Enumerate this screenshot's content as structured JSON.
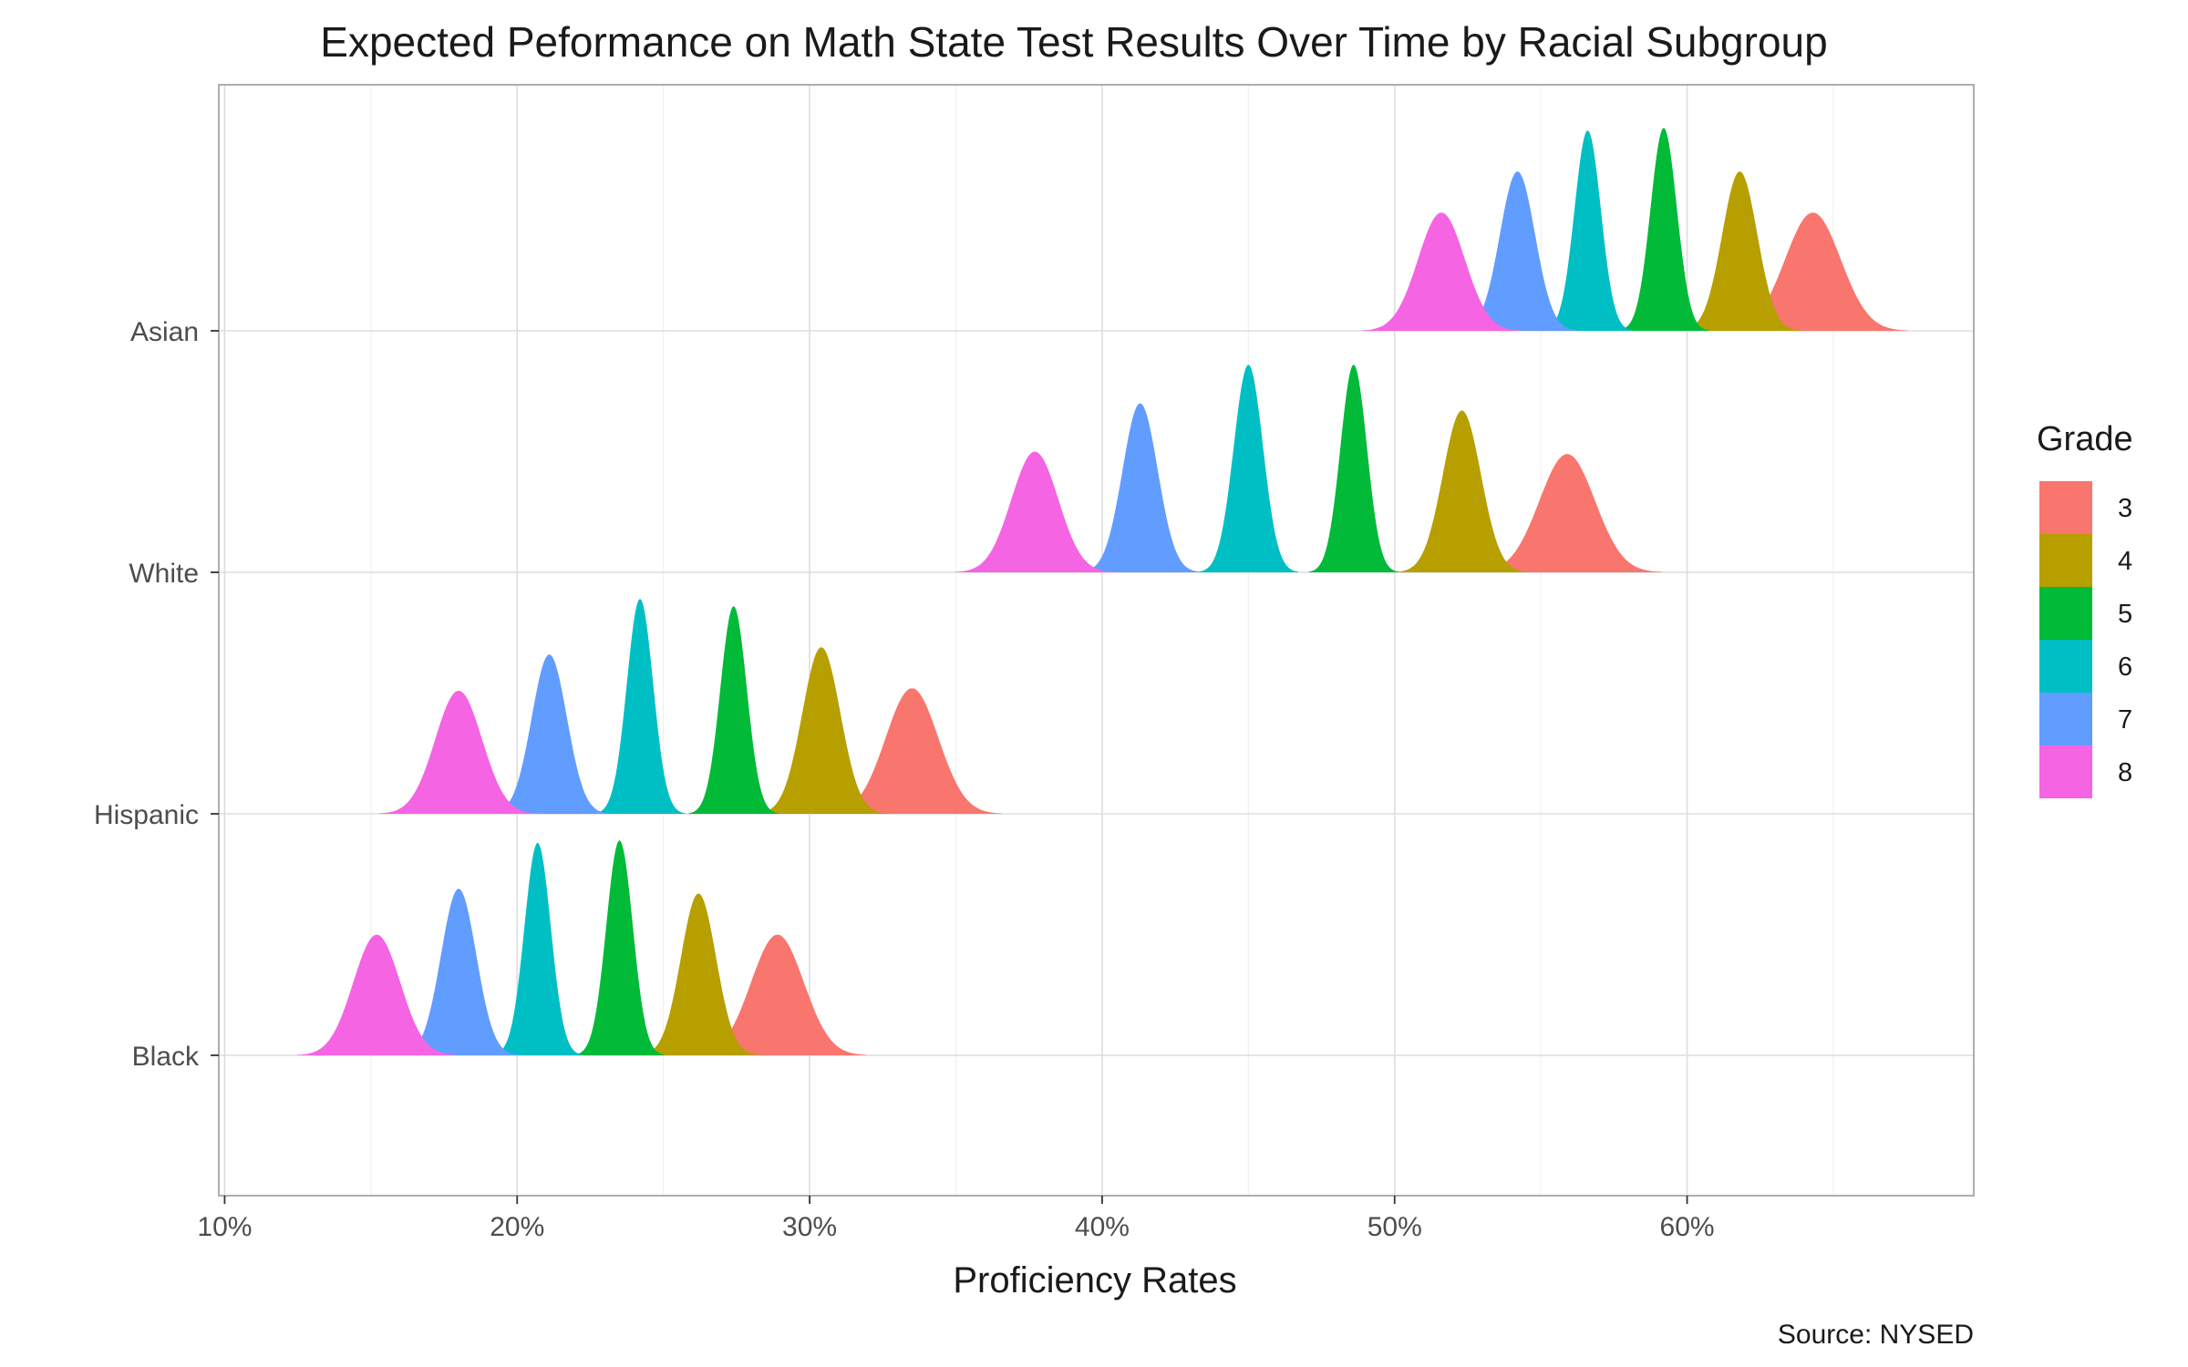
{
  "chart_data": {
    "type": "ridgeline",
    "title": "Expected Peformance on Math State Test Results Over Time by Racial Subgroup",
    "xlabel": "Proficiency Rates",
    "ylabel": "",
    "caption": "Source: NYSED",
    "x_unit": "%",
    "xlim": [
      9.8,
      69.8
    ],
    "x_ticks": [
      10,
      20,
      30,
      40,
      50,
      60
    ],
    "x_tick_labels": [
      "10%",
      "20%",
      "30%",
      "40%",
      "50%",
      "60%"
    ],
    "categories": [
      "Black",
      "Hispanic",
      "White",
      "Asian"
    ],
    "legend": {
      "title": "Grade",
      "position": "right"
    },
    "grid": true,
    "series": [
      {
        "name": "3",
        "color": "#F8766D",
        "ridges": [
          {
            "group": "Asian",
            "center": 64.3,
            "sd": 0.95,
            "peak": 0.49
          },
          {
            "group": "White",
            "center": 55.9,
            "sd": 0.95,
            "peak": 0.49
          },
          {
            "group": "Hispanic",
            "center": 33.5,
            "sd": 0.9,
            "peak": 0.52
          },
          {
            "group": "Black",
            "center": 28.9,
            "sd": 0.9,
            "peak": 0.5
          }
        ]
      },
      {
        "name": "4",
        "color": "#B79F00",
        "ridges": [
          {
            "group": "Asian",
            "center": 61.8,
            "sd": 0.6,
            "peak": 0.66
          },
          {
            "group": "White",
            "center": 52.3,
            "sd": 0.65,
            "peak": 0.67
          },
          {
            "group": "Hispanic",
            "center": 30.4,
            "sd": 0.65,
            "peak": 0.69
          },
          {
            "group": "Black",
            "center": 26.2,
            "sd": 0.6,
            "peak": 0.67
          }
        ]
      },
      {
        "name": "5",
        "color": "#00BA38",
        "ridges": [
          {
            "group": "Asian",
            "center": 59.2,
            "sd": 0.45,
            "peak": 0.84
          },
          {
            "group": "White",
            "center": 48.6,
            "sd": 0.45,
            "peak": 0.86
          },
          {
            "group": "Hispanic",
            "center": 27.4,
            "sd": 0.45,
            "peak": 0.86
          },
          {
            "group": "Black",
            "center": 23.5,
            "sd": 0.45,
            "peak": 0.89
          }
        ]
      },
      {
        "name": "6",
        "color": "#00BFC4",
        "ridges": [
          {
            "group": "Asian",
            "center": 56.6,
            "sd": 0.45,
            "peak": 0.83
          },
          {
            "group": "White",
            "center": 45.0,
            "sd": 0.5,
            "peak": 0.86
          },
          {
            "group": "Hispanic",
            "center": 24.2,
            "sd": 0.45,
            "peak": 0.89
          },
          {
            "group": "Black",
            "center": 20.7,
            "sd": 0.45,
            "peak": 0.88
          }
        ]
      },
      {
        "name": "7",
        "color": "#619CFF",
        "ridges": [
          {
            "group": "Asian",
            "center": 54.2,
            "sd": 0.6,
            "peak": 0.66
          },
          {
            "group": "White",
            "center": 41.3,
            "sd": 0.6,
            "peak": 0.7
          },
          {
            "group": "Hispanic",
            "center": 21.1,
            "sd": 0.6,
            "peak": 0.66
          },
          {
            "group": "Black",
            "center": 18.0,
            "sd": 0.6,
            "peak": 0.69
          }
        ]
      },
      {
        "name": "8",
        "color": "#F564E3",
        "ridges": [
          {
            "group": "Asian",
            "center": 51.6,
            "sd": 0.8,
            "peak": 0.49
          },
          {
            "group": "White",
            "center": 37.7,
            "sd": 0.8,
            "peak": 0.5
          },
          {
            "group": "Hispanic",
            "center": 18.0,
            "sd": 0.8,
            "peak": 0.51
          },
          {
            "group": "Black",
            "center": 15.2,
            "sd": 0.8,
            "peak": 0.5
          }
        ]
      }
    ]
  }
}
